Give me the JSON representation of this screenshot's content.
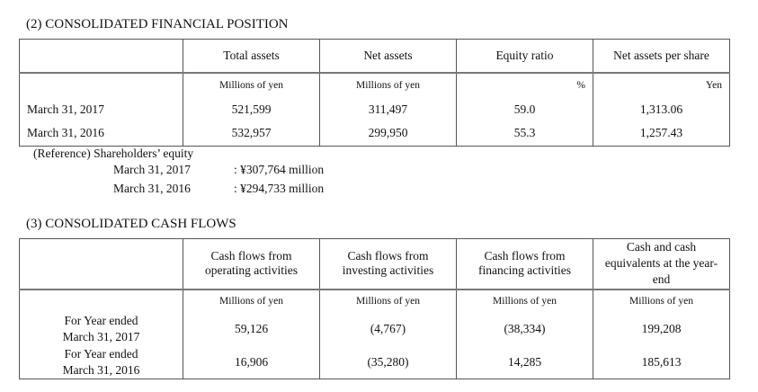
{
  "position": {
    "title": "(2) CONSOLIDATED FINANCIAL POSITION",
    "headers": [
      "Total assets",
      "Net assets",
      "Equity ratio",
      "Net assets per share"
    ],
    "units": [
      "Millions of yen",
      "Millions of yen",
      "%",
      "Yen"
    ],
    "rows": [
      {
        "label": "March 31, 2017",
        "values": [
          "521,599",
          "311,497",
          "59.0",
          "1,313.06"
        ]
      },
      {
        "label": "March 31, 2016",
        "values": [
          "532,957",
          "299,950",
          "55.3",
          "1,257.43"
        ]
      }
    ],
    "reference": {
      "title": "(Reference) Shareholders’ equity",
      "items": [
        {
          "label": "March 31, 2017",
          "value": ": ¥307,764 million"
        },
        {
          "label": "March 31, 2016",
          "value": ": ¥294,733 million"
        }
      ]
    }
  },
  "cashflows": {
    "title": "(3) CONSOLIDATED CASH FLOWS",
    "headers": [
      "Cash flows from operating activities",
      "Cash flows from investing activities",
      "Cash flows from financing activities",
      "Cash and cash equivalents at the year-end"
    ],
    "units": [
      "Millions of yen",
      "Millions of yen",
      "Millions of yen",
      "Millions of yen"
    ],
    "rows": [
      {
        "label": "For Year ended March 31, 2017",
        "values": [
          "59,126",
          "(4,767)",
          "(38,334)",
          "199,208"
        ]
      },
      {
        "label": "For Year ended March 31, 2016",
        "values": [
          "16,906",
          "(35,280)",
          "14,285",
          "185,613"
        ]
      }
    ]
  }
}
